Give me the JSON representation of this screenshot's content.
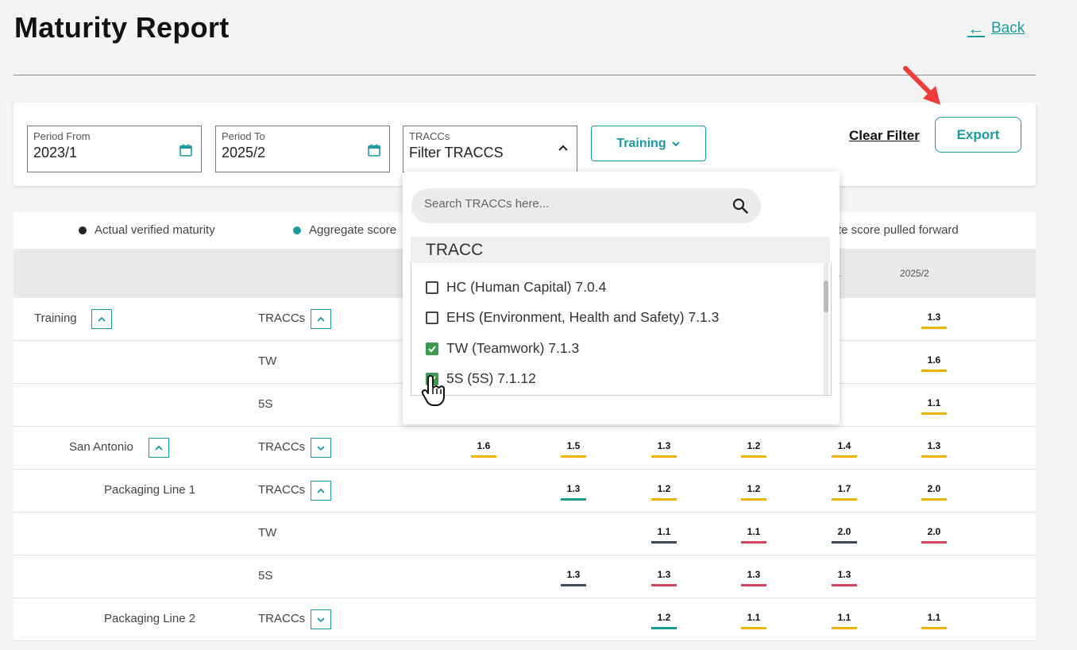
{
  "page": {
    "title": "Maturity Report",
    "back_label": "Back"
  },
  "filters": {
    "period_from": {
      "label": "Period From",
      "value": "2023/1"
    },
    "period_to": {
      "label": "Period To",
      "value": "2025/2"
    },
    "traccs": {
      "label": "TRACCs",
      "value": "Filter TRACCS"
    },
    "training_label": "Training",
    "clear_filter_label": "Clear Filter",
    "export_label": "Export"
  },
  "legend": {
    "actual": "Actual verified maturity",
    "aggregate": "Aggregate score",
    "pulled_forward": "te score pulled forward",
    "colors": {
      "actual": "#222222",
      "aggregate": "#1a9ba0"
    }
  },
  "table": {
    "visible_periods": [
      "1",
      "2025/2"
    ],
    "rows": [
      {
        "group": "Training",
        "group_toggle": "up",
        "category": "TRACCs",
        "cat_toggle": "up",
        "scores": [
          null,
          null,
          null,
          null,
          null,
          "1.3"
        ],
        "colors": [
          null,
          null,
          null,
          null,
          null,
          "#f0b400"
        ]
      },
      {
        "group": "",
        "category": "TW",
        "scores": [
          null,
          null,
          null,
          null,
          null,
          "1.6"
        ],
        "colors": [
          null,
          null,
          null,
          null,
          null,
          "#f0b400"
        ]
      },
      {
        "group": "",
        "category": "5S",
        "scores": [
          null,
          null,
          null,
          null,
          null,
          "1.1"
        ],
        "colors": [
          null,
          null,
          null,
          null,
          null,
          "#f0b400"
        ]
      },
      {
        "group": "San Antonio",
        "group_toggle": "up",
        "category": "TRACCs",
        "cat_toggle": "down",
        "scores": [
          "1.6",
          "1.5",
          "1.3",
          "1.2",
          "1.4",
          "1.3"
        ],
        "colors": [
          "#f0b400",
          "#f0b400",
          "#f0b400",
          "#f0b400",
          "#f0b400",
          "#f0b400"
        ]
      },
      {
        "group": "Packaging Line 1",
        "category": "TRACCs",
        "cat_toggle": "up",
        "scores": [
          null,
          "1.3",
          "1.2",
          "1.2",
          "1.7",
          "2.0"
        ],
        "colors": [
          null,
          "#1a9b8f",
          "#f0b400",
          "#f0b400",
          "#f0b400",
          "#f0b400"
        ]
      },
      {
        "group": "",
        "category": "TW",
        "scores": [
          null,
          null,
          "1.1",
          "1.1",
          "2.0",
          "2.0"
        ],
        "colors": [
          null,
          null,
          "#3e4a5c",
          "#d6415e",
          "#3e4a5c",
          "#d6415e"
        ]
      },
      {
        "group": "",
        "category": "5S",
        "scores": [
          null,
          "1.3",
          "1.3",
          "1.3",
          "1.3",
          null
        ],
        "colors": [
          null,
          "#3e4a5c",
          "#d6415e",
          "#d6415e",
          "#d6415e",
          null
        ]
      },
      {
        "group": "Packaging Line 2",
        "category": "TRACCs",
        "cat_toggle": "down",
        "scores": [
          null,
          null,
          "1.2",
          "1.1",
          "1.1",
          "1.1"
        ],
        "colors": [
          null,
          null,
          "#1a9b8f",
          "#f0b400",
          "#f0b400",
          "#f0b400"
        ]
      }
    ]
  },
  "dropdown": {
    "search_placeholder": "Search TRACCs here...",
    "group_label": "TRACC",
    "options": [
      {
        "label": "HC (Human Capital) 7.0.4",
        "checked": false
      },
      {
        "label": "EHS (Environment, Health and Safety) 7.1.3",
        "checked": false
      },
      {
        "label": "TW (Teamwork) 7.1.3",
        "checked": true
      },
      {
        "label": "5S (5S) 7.1.12",
        "checked": true
      }
    ]
  }
}
